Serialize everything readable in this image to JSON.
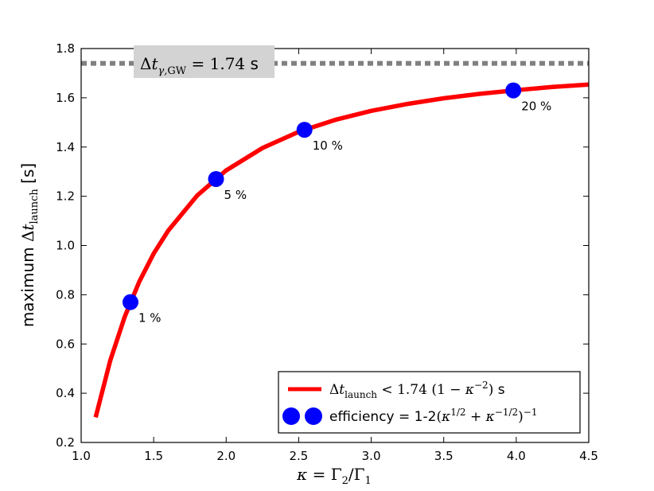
{
  "chart_data": {
    "type": "line",
    "xlabel": "κ = Γ₂/Γ₁",
    "ylabel": "maximum Δt_launch [s]",
    "xlim": [
      1.0,
      4.5
    ],
    "ylim": [
      0.2,
      1.8
    ],
    "x_ticks": [
      "1.0",
      "1.5",
      "2.0",
      "2.5",
      "3.0",
      "3.5",
      "4.0",
      "4.5"
    ],
    "y_ticks": [
      "0.2",
      "0.4",
      "0.6",
      "0.8",
      "1.0",
      "1.2",
      "1.4",
      "1.6",
      "1.8"
    ],
    "grid": false,
    "legend_position": "bottom-right",
    "annotation": {
      "text": "Δt_γ,GW = 1.74 s",
      "value": 1.74,
      "line_style": "dotted",
      "color": "#808080"
    },
    "series": [
      {
        "name": "Δt_launch < 1.74 (1 − κ⁻²) s",
        "kind": "curve",
        "color": "#ff0000",
        "x": [
          1.1,
          1.2,
          1.3,
          1.4,
          1.5,
          1.6,
          1.8,
          2.0,
          2.25,
          2.5,
          2.75,
          3.0,
          3.25,
          3.5,
          3.75,
          4.0,
          4.25,
          4.5
        ],
        "y": [
          0.302,
          0.532,
          0.71,
          0.852,
          0.967,
          1.06,
          1.203,
          1.305,
          1.396,
          1.462,
          1.51,
          1.547,
          1.575,
          1.598,
          1.616,
          1.631,
          1.644,
          1.654
        ]
      },
      {
        "name": "efficiency = 1-2(κ^1/2 + κ^-1/2)^-1",
        "kind": "points",
        "color": "#0000ff",
        "x": [
          1.34,
          1.93,
          2.54,
          3.98
        ],
        "y": [
          0.77,
          1.27,
          1.47,
          1.63
        ],
        "labels": [
          "1 %",
          "5 %",
          "10 %",
          "20 %"
        ]
      }
    ]
  }
}
